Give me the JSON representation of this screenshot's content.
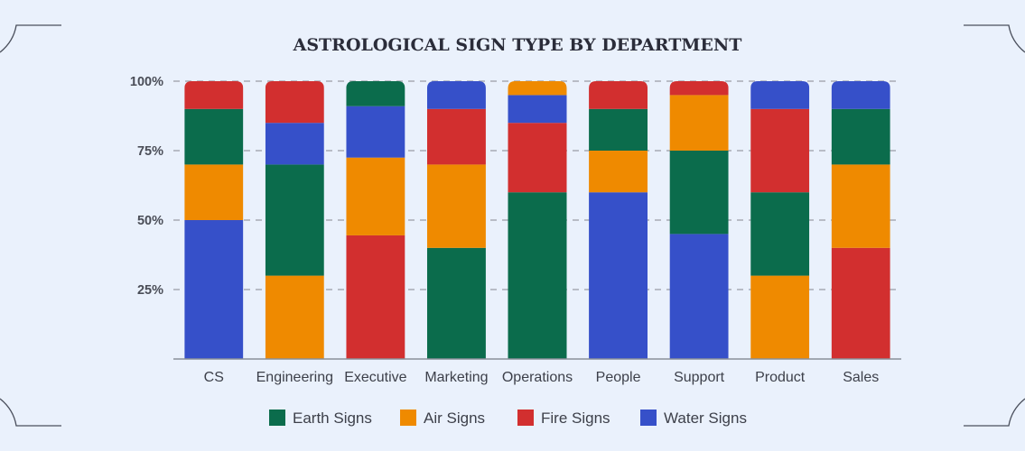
{
  "chart_data": {
    "type": "bar",
    "stacked": true,
    "normalized": true,
    "title": "ASTROLOGICAL SIGN TYPE BY DEPARTMENT",
    "xlabel": "",
    "ylabel": "",
    "ylim": [
      0,
      100
    ],
    "y_ticks": [
      {
        "value": 25,
        "label": "25%"
      },
      {
        "value": 50,
        "label": "50%"
      },
      {
        "value": 75,
        "label": "75%"
      },
      {
        "value": 100,
        "label": "100%"
      }
    ],
    "grid": "horizontal-dashed",
    "legend_position": "bottom",
    "categories": [
      "CS",
      "Engineering",
      "Executive",
      "Marketing",
      "Operations",
      "People",
      "Support",
      "Product",
      "Sales"
    ],
    "stack_order": [
      "Water",
      "Air",
      "Earth",
      "Fire",
      "Air (second segment)",
      "Water (second segment)",
      "Earth (second segment)"
    ],
    "series": [
      {
        "name": "Water Signs",
        "color": "#3650c9",
        "values": [
          50,
          0,
          0,
          0,
          0,
          60,
          45,
          0,
          0
        ]
      },
      {
        "name": "Air Signs",
        "color": "#ef8a00",
        "values": [
          0,
          30,
          0,
          0,
          0,
          0,
          0,
          30,
          0
        ]
      },
      {
        "name": "Earth Signs",
        "color": "#0b6c4c",
        "values": [
          0,
          40,
          0,
          40,
          60,
          0,
          30,
          30,
          0
        ]
      },
      {
        "name": "Fire Signs",
        "color": "#d22f2f",
        "values": [
          0,
          0,
          44.5,
          0,
          25,
          0,
          0,
          30,
          40
        ]
      },
      {
        "name": "Air Signs",
        "color": "#ef8a00",
        "values": [
          20,
          0,
          28,
          30,
          0,
          15,
          20,
          0,
          30
        ]
      },
      {
        "name": "Water Signs",
        "color": "#3650c9",
        "values": [
          0,
          15,
          18.5,
          0,
          10,
          0,
          0,
          0,
          0
        ]
      },
      {
        "name": "Earth Signs",
        "color": "#0b6c4c",
        "values": [
          20,
          0,
          9,
          0,
          0,
          15,
          0,
          0,
          20
        ]
      },
      {
        "name": "Fire Signs",
        "color": "#d22f2f",
        "values": [
          10,
          15,
          0,
          20,
          0,
          10,
          5,
          0,
          0
        ]
      },
      {
        "name": "Air Signs",
        "color": "#ef8a00",
        "values": [
          0,
          0,
          0,
          0,
          5,
          0,
          0,
          0,
          0
        ]
      },
      {
        "name": "Water Signs",
        "color": "#3650c9",
        "values": [
          0,
          0,
          0,
          10,
          0,
          0,
          0,
          10,
          10
        ]
      }
    ],
    "legend": [
      {
        "label": "Earth Signs",
        "color": "#0b6c4c"
      },
      {
        "label": "Air Signs",
        "color": "#ef8a00"
      },
      {
        "label": "Fire Signs",
        "color": "#d22f2f"
      },
      {
        "label": "Water Signs",
        "color": "#3650c9"
      }
    ]
  }
}
